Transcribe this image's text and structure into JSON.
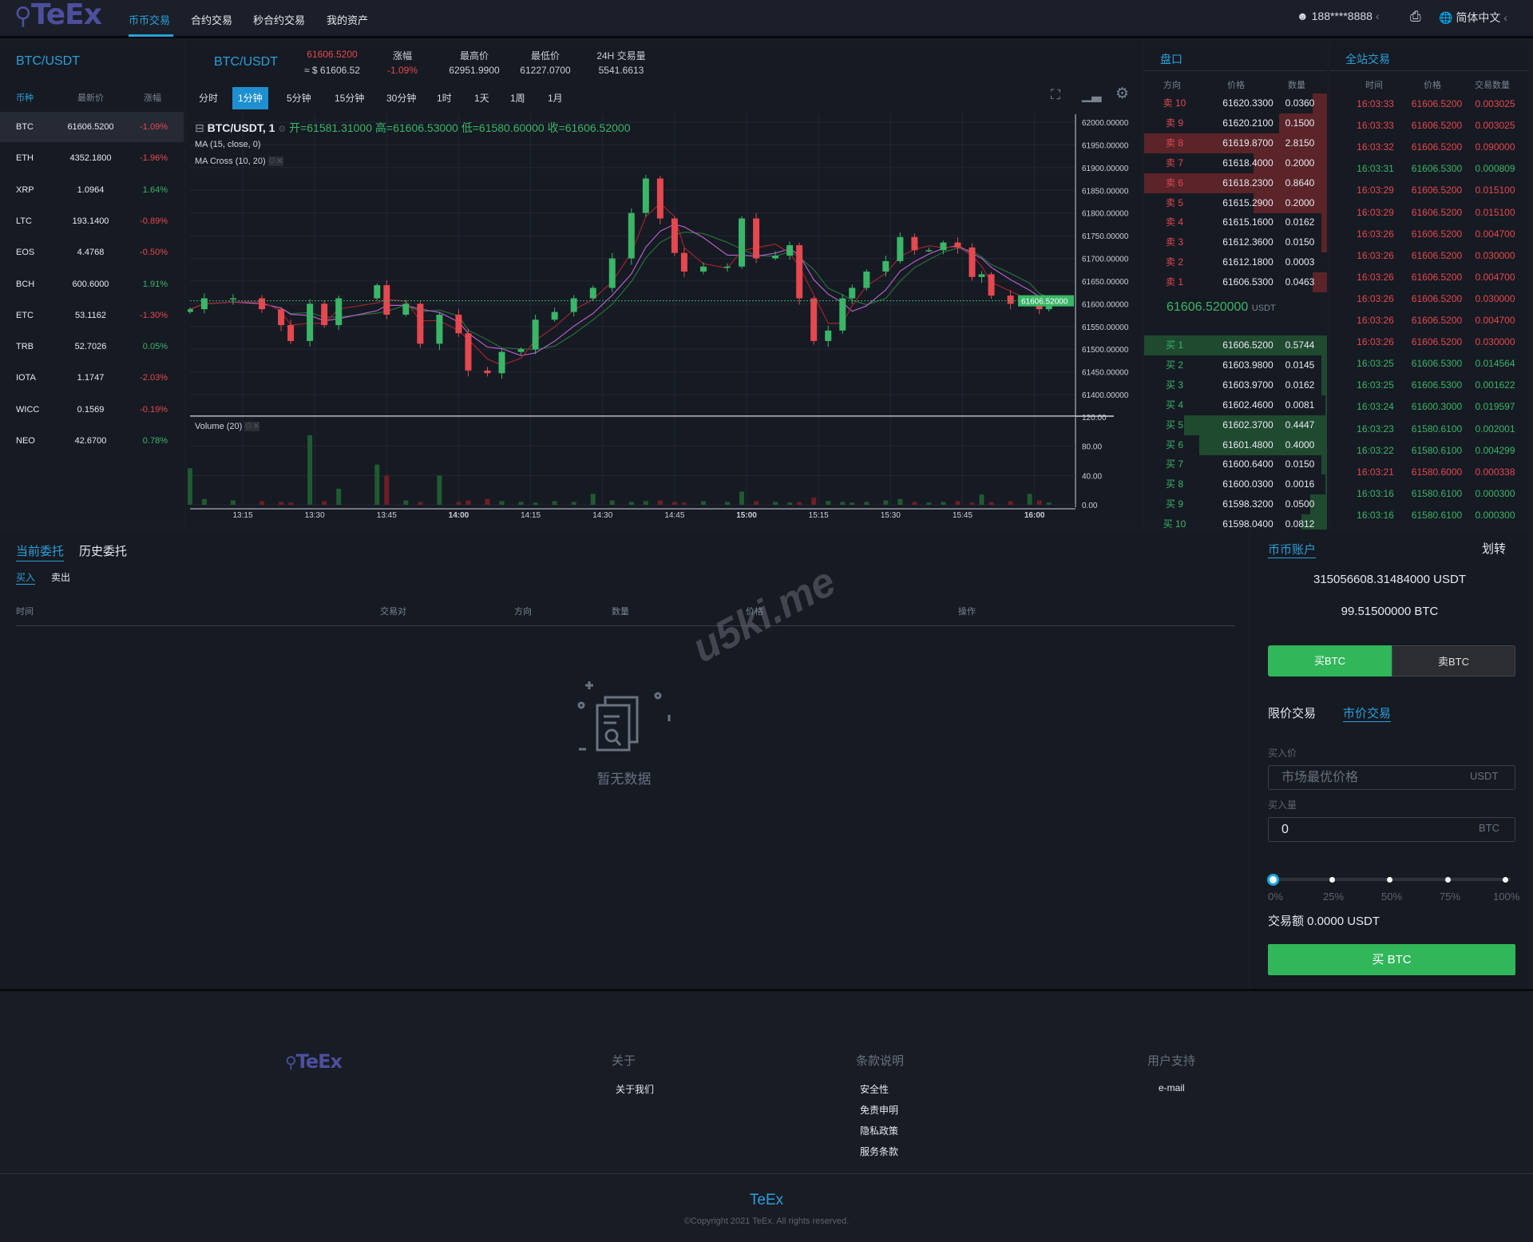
{
  "header": {
    "logo": "TeEx",
    "nav": [
      "币币交易",
      "合约交易",
      "秒合约交易",
      "我的资产"
    ],
    "user": "188****8888",
    "language": "简体中文"
  },
  "markets": {
    "title": "BTC/USDT",
    "columns": [
      "币种",
      "最新价",
      "涨幅"
    ],
    "rows": [
      [
        "BTC",
        "61606.5200",
        "-1.09%"
      ],
      [
        "ETH",
        "4352.1800",
        "-1.96%"
      ],
      [
        "XRP",
        "1.0964",
        "1.64%"
      ],
      [
        "LTC",
        "193.1400",
        "-0.89%"
      ],
      [
        "EOS",
        "4.4768",
        "-0.50%"
      ],
      [
        "BCH",
        "600.6000",
        "1.91%"
      ],
      [
        "ETC",
        "53.1162",
        "-1.30%"
      ],
      [
        "TRB",
        "52.7026",
        "0.05%"
      ],
      [
        "IOTA",
        "1.1747",
        "-2.03%"
      ],
      [
        "WICC",
        "0.1569",
        "-0.19%"
      ],
      [
        "NEO",
        "42.6700",
        "0.78%"
      ]
    ]
  },
  "ticker": {
    "pair": "BTC/USDT",
    "price": "61606.5200",
    "usd": "≈ $ 61606.52",
    "change_label": "涨幅",
    "change": "-1.09%",
    "high_label": "最高价",
    "high": "62951.9900",
    "low_label": "最低价",
    "low": "61227.0700",
    "vol_label": "24H 交易量",
    "vol": "5541.6613"
  },
  "intervals": [
    "分时",
    "1分钟",
    "5分钟",
    "15分钟",
    "30分钟",
    "1时",
    "1天",
    "1周",
    "1月"
  ],
  "active_interval": "1分钟",
  "chart_legend": {
    "title": "BTC/USDT, 1",
    "open": "开=61581.31000",
    "high": "高=61606.53000",
    "low": "低=61580.60000",
    "close": "收=61606.52000",
    "ma": "MA (15, close, 0)",
    "macross": "MA Cross (10, 20)",
    "volume": "Volume (20)"
  },
  "chart_data": {
    "type": "candlestick",
    "ylim": [
      61375,
      62020
    ],
    "yticks": [
      "62000.00000",
      "61950.00000",
      "61900.00000",
      "61850.00000",
      "61800.00000",
      "61750.00000",
      "61700.00000",
      "61650.00000",
      "61600.00000",
      "61550.00000",
      "61500.00000",
      "61450.00000",
      "61400.00000"
    ],
    "last_price": "61606.52000",
    "volume_ticks": [
      "120.00",
      "80.00",
      "40.00",
      "0.00"
    ],
    "volume_max": 120,
    "xticks": [
      "13:15",
      "13:30",
      "13:45",
      "14:00",
      "14:15",
      "14:30",
      "14:45",
      "15:00",
      "15:15",
      "15:30",
      "15:45",
      "16:00"
    ],
    "times": [
      "13:04",
      "13:07",
      "13:13",
      "13:19",
      "13:23",
      "13:25",
      "13:29",
      "13:32",
      "13:35",
      "13:43",
      "13:45",
      "13:49",
      "13:52",
      "13:56",
      "14:00",
      "14:02",
      "14:06",
      "14:09",
      "14:13",
      "14:16",
      "14:20",
      "14:24",
      "14:28",
      "14:32",
      "14:36",
      "14:39",
      "14:42",
      "14:45",
      "14:47",
      "14:51",
      "14:56",
      "14:59",
      "15:02",
      "15:06",
      "15:09",
      "15:11",
      "15:14",
      "15:17",
      "15:20",
      "15:22",
      "15:25",
      "15:29",
      "15:32",
      "15:35",
      "15:38",
      "15:41",
      "15:44",
      "15:47",
      "15:49",
      "15:51",
      "15:55",
      "15:59",
      "16:01",
      "16:03"
    ],
    "close": [
      61588,
      61612,
      61612,
      61588,
      61553,
      61518,
      61600,
      61553,
      61612,
      61641,
      61576,
      61600,
      61512,
      61576,
      61535,
      61453,
      61447,
      61494,
      61500,
      61565,
      61582,
      61612,
      61635,
      61700,
      61800,
      61876,
      61788,
      61712,
      61671,
      61682,
      61682,
      61788,
      61700,
      61706,
      61729,
      61612,
      61518,
      61541,
      61612,
      61635,
      61671,
      61694,
      61747,
      61718,
      61718,
      61735,
      61724,
      61659,
      61665,
      61618,
      61600,
      61606,
      61588,
      61606.52
    ],
    "volume": [
      50,
      8,
      6,
      5,
      4,
      3,
      95,
      5,
      22,
      55,
      40,
      6,
      4,
      40,
      4,
      6,
      8,
      5,
      4,
      3,
      5,
      4,
      15,
      6,
      4,
      5,
      6,
      4,
      3,
      5,
      4,
      18,
      5,
      4,
      3,
      4,
      10,
      5,
      4,
      3,
      4,
      6,
      8,
      4,
      3,
      4,
      5,
      3,
      14,
      4,
      5,
      15,
      6,
      3
    ],
    "colors": {
      "up": "#3ab668",
      "down": "#e5484f",
      "ma15": "#b35fc9",
      "ma10": "#a1242e",
      "ma20": "#2a6e3a"
    }
  },
  "orderbook": {
    "title": "盘口",
    "columns": [
      "方向",
      "价格",
      "数量"
    ],
    "asks": [
      [
        "卖 10",
        "61620.3300",
        "0.0360",
        0.08
      ],
      [
        "卖 9",
        "61620.2100",
        "0.1500",
        0.26
      ],
      [
        "卖 8",
        "61619.8700",
        "2.8150",
        1
      ],
      [
        "卖 7",
        "61618.4000",
        "0.2000",
        0.4
      ],
      [
        "卖 6",
        "61618.2300",
        "0.8640",
        1
      ],
      [
        "卖 5",
        "61615.2900",
        "0.2000",
        0.4
      ],
      [
        "卖 4",
        "61615.1600",
        "0.0162",
        0.03
      ],
      [
        "卖 3",
        "61612.3600",
        "0.0150",
        0.03
      ],
      [
        "卖 2",
        "61612.1800",
        "0.0003",
        0
      ],
      [
        "卖 1",
        "61606.5300",
        "0.0463",
        0.08
      ]
    ],
    "mid": "61606.520000",
    "mid_unit": "USDT",
    "bids": [
      [
        "买 1",
        "61606.5200",
        "0.5744",
        1
      ],
      [
        "买 2",
        "61603.9800",
        "0.0145",
        0.03
      ],
      [
        "买 3",
        "61603.9700",
        "0.0162",
        0.03
      ],
      [
        "买 4",
        "61602.4600",
        "0.0081",
        0.01
      ],
      [
        "买 5",
        "61602.3700",
        "0.4447",
        0.78
      ],
      [
        "买 6",
        "61601.4800",
        "0.4000",
        0.7
      ],
      [
        "买 7",
        "61600.6400",
        "0.0150",
        0.03
      ],
      [
        "买 8",
        "61600.0300",
        "0.0016",
        0.01
      ],
      [
        "买 9",
        "61598.3200",
        "0.0500",
        0.09
      ],
      [
        "买 10",
        "61598.0400",
        "0.0812",
        0.14
      ]
    ]
  },
  "trades": {
    "title": "全站交易",
    "columns": [
      "时间",
      "价格",
      "交易数量"
    ],
    "rows": [
      [
        "16:03:33",
        "61606.5200",
        "0.003025",
        "sell"
      ],
      [
        "16:03:33",
        "61606.5200",
        "0.003025",
        "sell"
      ],
      [
        "16:03:32",
        "61606.5200",
        "0.090000",
        "sell"
      ],
      [
        "16:03:31",
        "61606.5300",
        "0.000809",
        "buy"
      ],
      [
        "16:03:29",
        "61606.5200",
        "0.015100",
        "sell"
      ],
      [
        "16:03:29",
        "61606.5200",
        "0.015100",
        "sell"
      ],
      [
        "16:03:26",
        "61606.5200",
        "0.004700",
        "sell"
      ],
      [
        "16:03:26",
        "61606.5200",
        "0.030000",
        "sell"
      ],
      [
        "16:03:26",
        "61606.5200",
        "0.004700",
        "sell"
      ],
      [
        "16:03:26",
        "61606.5200",
        "0.030000",
        "sell"
      ],
      [
        "16:03:26",
        "61606.5200",
        "0.004700",
        "sell"
      ],
      [
        "16:03:26",
        "61606.5200",
        "0.030000",
        "sell"
      ],
      [
        "16:03:25",
        "61606.5300",
        "0.014564",
        "buy"
      ],
      [
        "16:03:25",
        "61606.5300",
        "0.001622",
        "buy"
      ],
      [
        "16:03:24",
        "61600.3000",
        "0.019597",
        "buy"
      ],
      [
        "16:03:23",
        "61580.6100",
        "0.002001",
        "buy"
      ],
      [
        "16:03:22",
        "61580.6100",
        "0.004299",
        "buy"
      ],
      [
        "16:03:21",
        "61580.6000",
        "0.000338",
        "sell"
      ],
      [
        "16:03:16",
        "61580.6100",
        "0.000300",
        "buy"
      ],
      [
        "16:03:16",
        "61580.6100",
        "0.000300",
        "buy"
      ]
    ]
  },
  "orders": {
    "tabs": [
      "当前委托",
      "历史委托"
    ],
    "subtabs": [
      "买入",
      "卖出"
    ],
    "columns": [
      "时间",
      "交易对",
      "方向",
      "数量",
      "价格",
      "操作"
    ],
    "empty": "暂无数据"
  },
  "watermark": "u5ki.me",
  "account": {
    "title": "币币账户",
    "transfer": "划转",
    "usdt": "315056608.31484000 USDT",
    "btc": "99.51500000 BTC",
    "buy_tab": "买BTC",
    "sell_tab": "卖BTC",
    "limit": "限价交易",
    "market": "市价交易",
    "price_label": "买入价",
    "price_placeholder": "市场最优价格",
    "price_unit": "USDT",
    "qty_label": "买入量",
    "qty_value": "0",
    "qty_unit": "BTC",
    "slider": [
      "0%",
      "25%",
      "50%",
      "75%",
      "100%"
    ],
    "slider_value": 0,
    "amount": "交易额 0.0000 USDT",
    "submit": "买 BTC"
  },
  "footer": {
    "logo": "TeEx",
    "cols": [
      {
        "title": "关于",
        "links": [
          "关于我们"
        ]
      },
      {
        "title": "条款说明",
        "links": [
          "安全性",
          "免责申明",
          "隐私政策",
          "服务条款"
        ]
      },
      {
        "title": "用户支持",
        "links": [
          "e-mail"
        ]
      }
    ],
    "brand": "TeEx",
    "copyright": "©Copyright 2021 TeEx. All rights reserved."
  }
}
